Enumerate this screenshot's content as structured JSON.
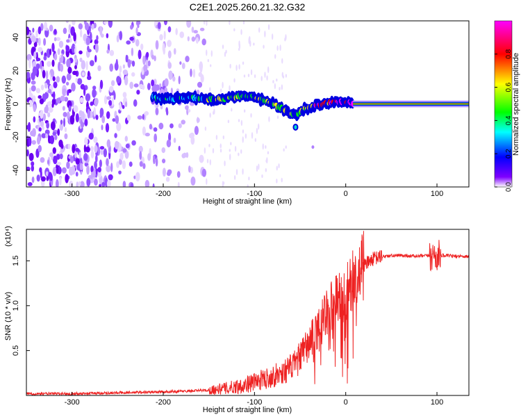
{
  "title": "C2E1.2025.260.21.32.G32",
  "chart_data": [
    {
      "type": "heatmap",
      "panel": "top",
      "title": "C2E1.2025.260.21.32.G32",
      "xlabel": "Height of straight line (km)",
      "ylabel": "Frequency (Hz)",
      "xlim": [
        -350,
        135
      ],
      "ylim": [
        -50,
        50
      ],
      "xticks": [
        -300,
        -200,
        -100,
        0,
        100
      ],
      "xtick_labels": [
        "-300",
        "-200",
        "-100",
        "0",
        "100"
      ],
      "yticks": [
        -40,
        -20,
        0,
        20,
        40
      ],
      "ytick_labels": [
        "-40",
        "-20",
        "0",
        "20",
        "40"
      ],
      "colorbar": {
        "label": "Normalized spectral amplitude",
        "range": [
          0,
          1
        ],
        "ticks": [
          0.0,
          0.2,
          0.4,
          0.6,
          0.8
        ],
        "tick_labels": [
          "0.0",
          "0.2",
          "0.4",
          "0.6",
          "0.8"
        ],
        "colors": [
          "#ffffff",
          "#7f00ff",
          "#0000ff",
          "#00ffff",
          "#00ff00",
          "#ffff00",
          "#ff0000",
          "#ff00ff"
        ]
      },
      "noise_region_km": [
        -350,
        -155
      ],
      "signal_track": {
        "x_km": [
          -212,
          -190,
          -170,
          -150,
          -130,
          -112,
          -100,
          -90,
          -80,
          -70,
          -62,
          -56,
          -50,
          -44,
          -38,
          -30,
          -20,
          -10,
          0,
          8,
          30,
          60,
          90,
          120,
          135
        ],
        "freq_hz": [
          4,
          3,
          4,
          3,
          3,
          5,
          4,
          2,
          0,
          -3,
          -5,
          -7,
          -5,
          -3,
          -2,
          -1,
          1,
          1,
          1,
          0,
          0,
          0,
          0,
          0,
          0
        ],
        "peak_amplitude": [
          0.3,
          0.35,
          0.35,
          0.45,
          0.5,
          0.45,
          0.5,
          0.5,
          0.55,
          0.45,
          0.5,
          0.45,
          0.45,
          0.6,
          0.7,
          0.8,
          0.85,
          0.9,
          0.95,
          1.0,
          1.0,
          1.0,
          1.0,
          1.0,
          1.0
        ]
      }
    },
    {
      "type": "line",
      "panel": "bottom",
      "xlabel": "Height of straight line (km)",
      "ylabel": "SNR (10 * v/v)",
      "yscale_label": "(x10⁴)",
      "xlim": [
        -350,
        135
      ],
      "ylim": [
        0,
        1.85
      ],
      "xticks": [
        -300,
        -200,
        -100,
        0,
        100
      ],
      "xtick_labels": [
        "-300",
        "-200",
        "-100",
        "0",
        "100"
      ],
      "yticks": [
        0.5,
        1.0,
        1.5
      ],
      "ytick_labels": [
        "0.5",
        "1.0",
        "1.5"
      ],
      "color": "#ee2222",
      "series": [
        {
          "name": "SNR",
          "x": [
            -350,
            -300,
            -250,
            -200,
            -170,
            -150,
            -130,
            -110,
            -90,
            -70,
            -55,
            -45,
            -35,
            -28,
            -20,
            -10,
            0,
            10,
            20,
            30,
            40,
            60,
            80,
            95,
            100,
            105,
            120,
            135
          ],
          "y": [
            0.02,
            0.02,
            0.03,
            0.04,
            0.05,
            0.06,
            0.08,
            0.12,
            0.18,
            0.25,
            0.35,
            0.5,
            0.65,
            0.8,
            0.95,
            1.05,
            1.15,
            1.3,
            1.45,
            1.52,
            1.55,
            1.56,
            1.55,
            1.56,
            1.55,
            1.56,
            1.55,
            1.55
          ]
        }
      ]
    }
  ]
}
